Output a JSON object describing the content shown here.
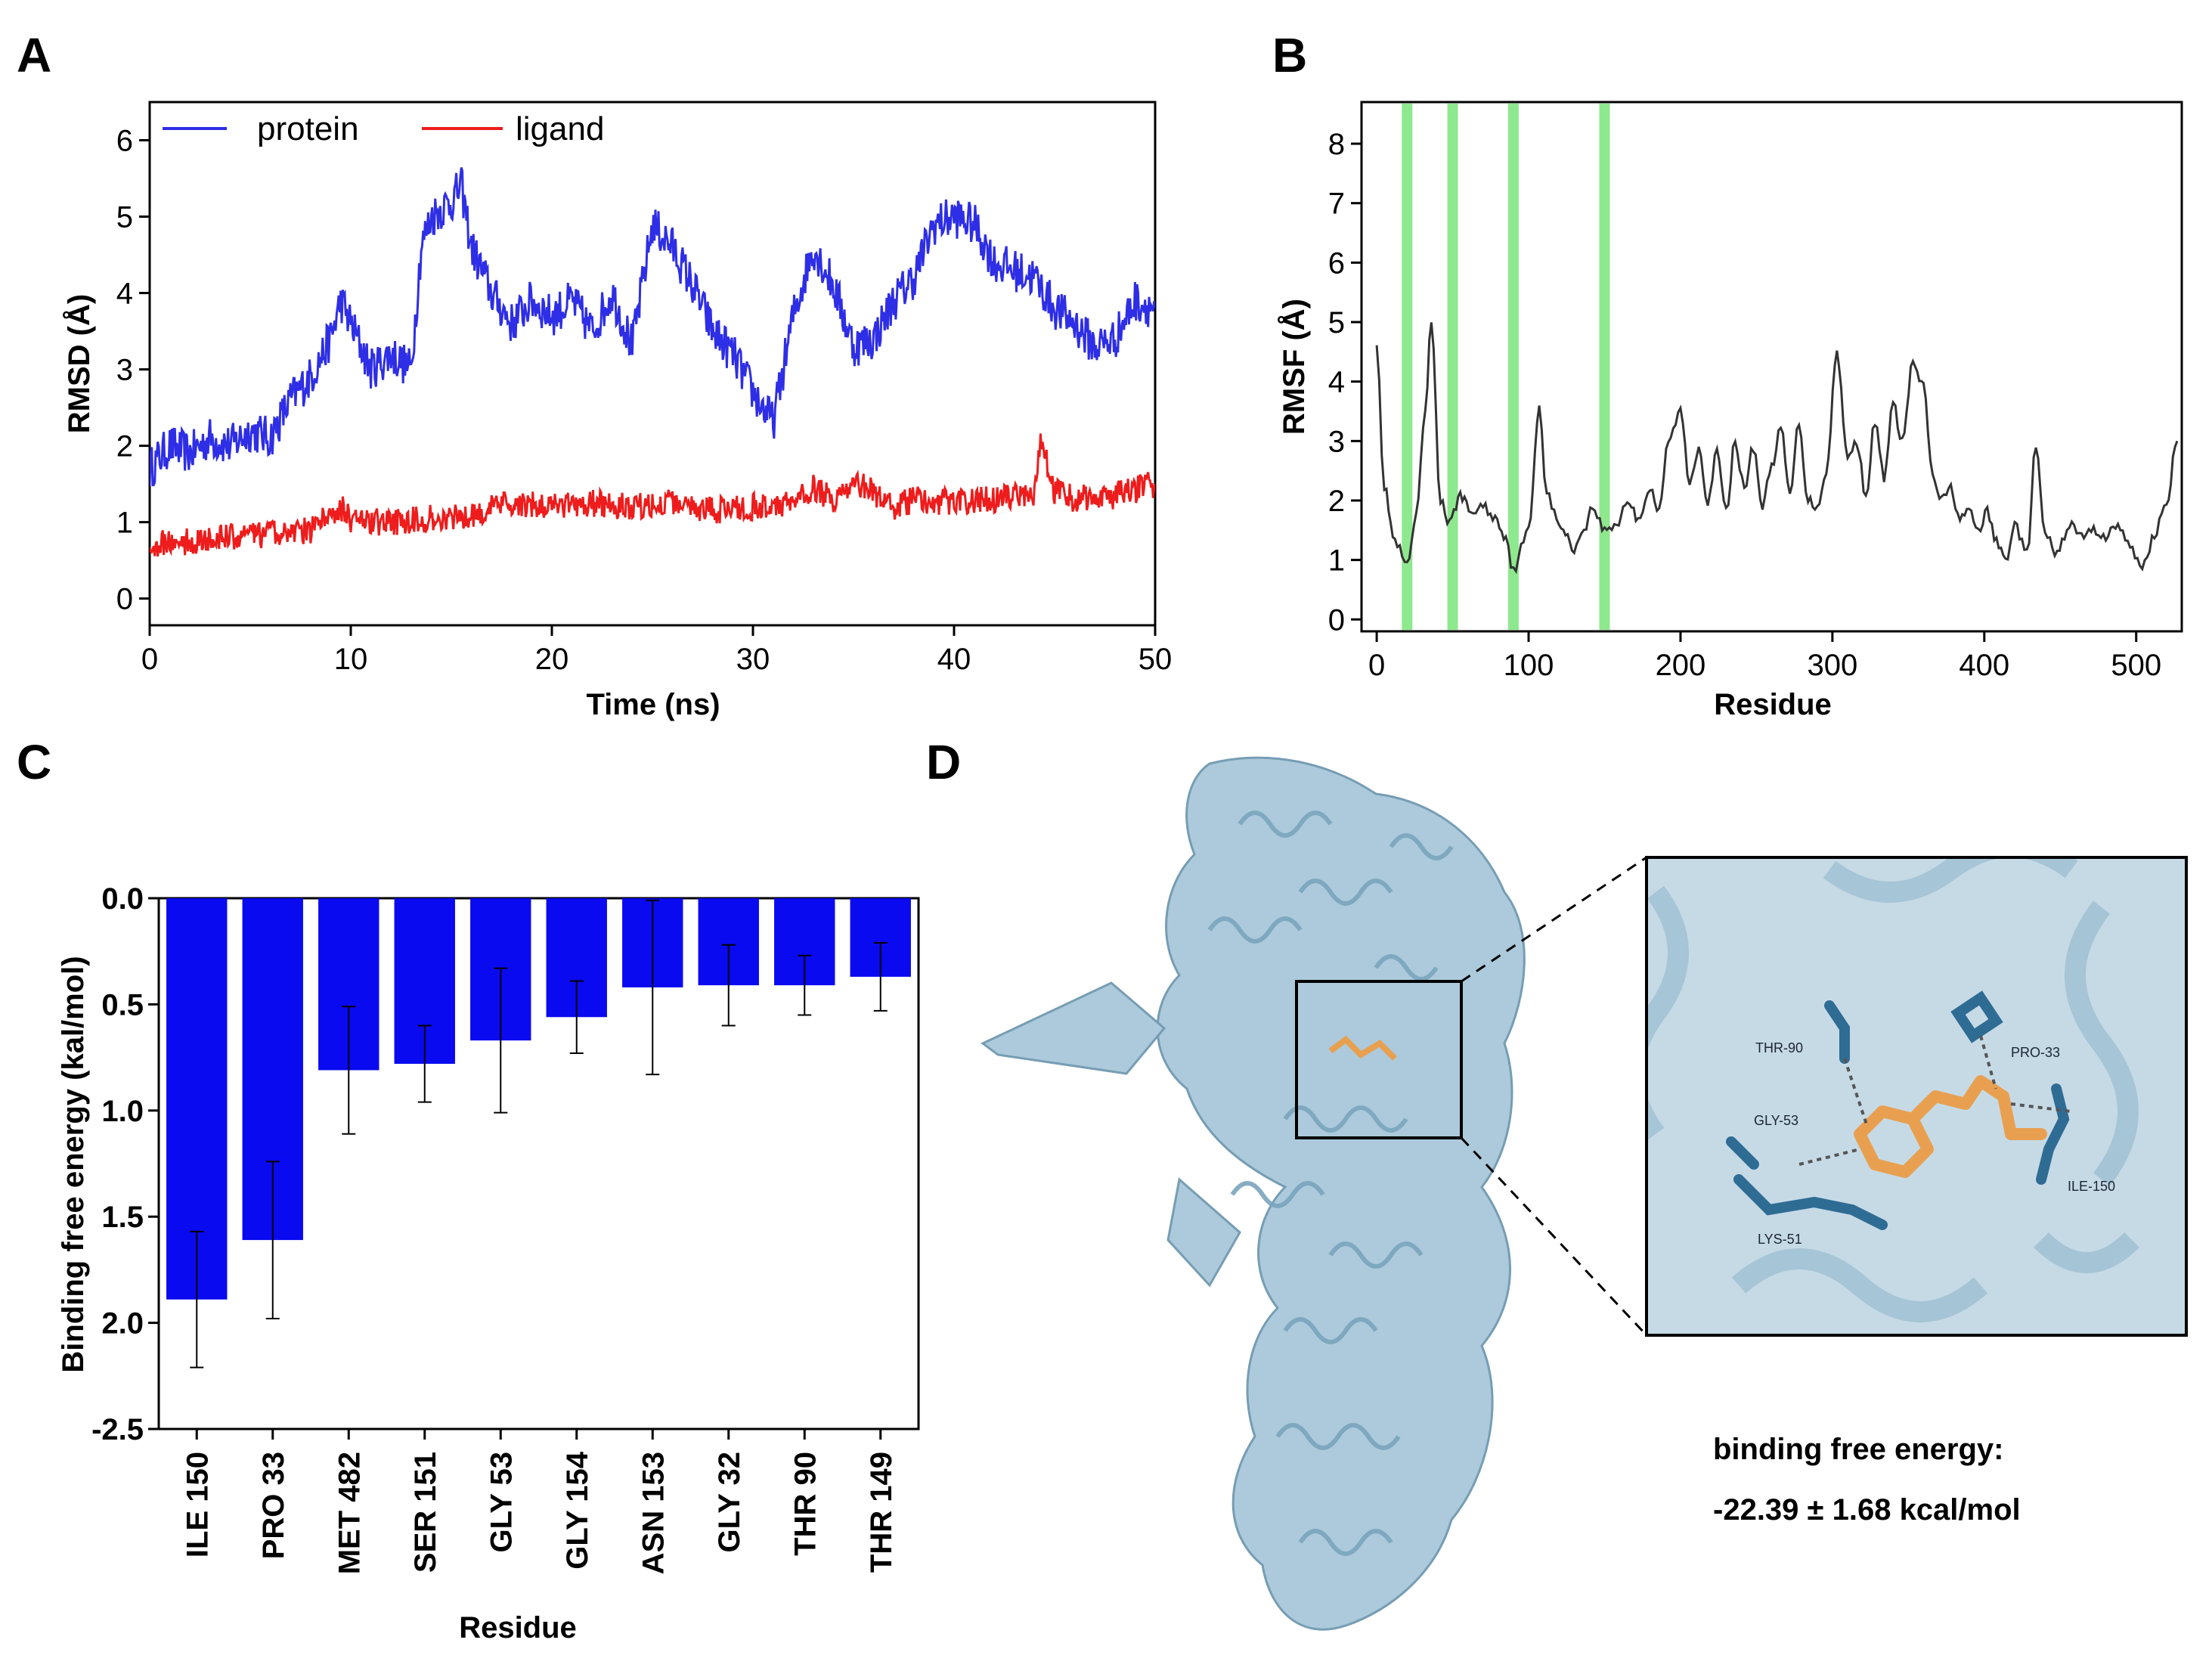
{
  "panels": {
    "A": {
      "letter": "A"
    },
    "B": {
      "letter": "B"
    },
    "C": {
      "letter": "C"
    },
    "D": {
      "letter": "D"
    }
  },
  "chart_data": [
    {
      "id": "A",
      "type": "line",
      "xlabel": "Time (ns)",
      "ylabel": "RMSD (Å)",
      "xlim": [
        0,
        50
      ],
      "ylim": [
        -0.35,
        6.5
      ],
      "xticks": [
        "0",
        "10",
        "20",
        "30",
        "40",
        "50"
      ],
      "yticks": [
        "0",
        "1",
        "2",
        "3",
        "4",
        "5",
        "6"
      ],
      "legend_position": "top-left",
      "series": [
        {
          "name": "protein",
          "color": "#2e2ee6",
          "x": [
            0,
            1,
            2,
            3,
            4,
            5,
            6,
            7,
            8,
            9,
            9.5,
            10.5,
            11,
            12,
            13,
            13.5,
            14,
            15,
            15.5,
            16,
            17,
            18,
            19,
            20,
            21,
            22,
            23,
            24,
            25,
            26,
            27,
            28,
            29,
            30,
            31,
            32,
            33,
            34,
            35,
            36,
            37,
            38,
            39,
            40,
            41,
            42,
            43,
            44,
            45,
            46,
            47,
            48,
            49,
            50
          ],
          "y": [
            1.7,
            2.0,
            1.9,
            2.1,
            2.0,
            2.2,
            2.1,
            2.6,
            2.9,
            3.4,
            3.9,
            3.3,
            3.0,
            3.2,
            3.0,
            4.6,
            5.0,
            5.2,
            5.4,
            4.6,
            4.0,
            3.6,
            3.9,
            3.7,
            3.9,
            3.5,
            4.0,
            3.3,
            4.9,
            4.6,
            4.1,
            3.5,
            3.2,
            2.7,
            2.3,
            3.7,
            4.6,
            4.1,
            3.3,
            3.4,
            3.9,
            4.2,
            4.9,
            5.0,
            4.9,
            4.4,
            4.3,
            4.2,
            3.8,
            3.6,
            3.3,
            3.4,
            3.9,
            3.8
          ]
        },
        {
          "name": "ligand",
          "color": "#ee1c1c",
          "x": [
            0,
            2,
            4,
            6,
            8,
            9.5,
            10,
            12,
            14,
            16,
            18,
            20,
            22,
            24,
            26,
            28,
            30,
            32,
            33,
            34,
            35.5,
            37,
            38,
            40,
            42,
            44,
            44.3,
            45,
            46,
            48,
            50
          ],
          "y": [
            0.7,
            0.75,
            0.8,
            0.85,
            0.9,
            1.2,
            1.0,
            1.0,
            1.05,
            1.1,
            1.25,
            1.2,
            1.25,
            1.2,
            1.25,
            1.15,
            1.2,
            1.25,
            1.45,
            1.3,
            1.5,
            1.2,
            1.3,
            1.25,
            1.3,
            1.35,
            2.1,
            1.4,
            1.3,
            1.35,
            1.5
          ]
        }
      ]
    },
    {
      "id": "B",
      "type": "line",
      "xlabel": "Residue",
      "ylabel": "RMSF (Å)",
      "xlim": [
        -10,
        530
      ],
      "ylim": [
        -0.2,
        8.7
      ],
      "xticks": [
        "0",
        "100",
        "200",
        "300",
        "400",
        "500"
      ],
      "yticks": [
        "0",
        "1",
        "2",
        "3",
        "4",
        "5",
        "6",
        "7",
        "8"
      ],
      "highlight_residues": [
        20,
        50,
        90,
        150
      ],
      "highlight_color": "#8ee88e",
      "series": [
        {
          "name": "RMSF",
          "color": "#333333",
          "x": [
            0,
            5,
            12,
            20,
            26,
            32,
            36,
            42,
            48,
            55,
            62,
            70,
            78,
            85,
            90,
            95,
            100,
            107,
            112,
            120,
            130,
            138,
            142,
            150,
            158,
            165,
            172,
            180,
            186,
            192,
            200,
            206,
            212,
            218,
            224,
            230,
            236,
            242,
            248,
            254,
            260,
            266,
            272,
            278,
            284,
            290,
            296,
            303,
            310,
            316,
            322,
            328,
            334,
            340,
            346,
            353,
            360,
            366,
            372,
            378,
            384,
            390,
            396,
            402,
            408,
            414,
            420,
            428,
            434,
            440,
            448,
            456,
            464,
            472,
            480,
            488,
            496,
            504,
            512,
            520,
            527
          ],
          "y": [
            4.7,
            2.2,
            1.3,
            0.9,
            1.7,
            3.5,
            5.0,
            2.0,
            1.6,
            2.1,
            1.8,
            1.9,
            1.7,
            1.4,
            0.8,
            1.2,
            1.5,
            3.6,
            2.1,
            1.6,
            1.2,
            1.6,
            1.9,
            1.5,
            1.6,
            2.0,
            1.7,
            2.2,
            1.8,
            3.0,
            3.5,
            2.3,
            2.9,
            2.0,
            2.8,
            1.8,
            3.0,
            2.2,
            2.9,
            1.9,
            2.6,
            3.2,
            2.1,
            3.3,
            2.0,
            1.9,
            2.5,
            4.5,
            2.7,
            3.0,
            2.1,
            3.3,
            2.4,
            3.6,
            3.0,
            4.3,
            3.9,
            2.4,
            2.0,
            2.2,
            1.7,
            1.8,
            1.5,
            1.8,
            1.3,
            1.0,
            1.6,
            1.1,
            2.9,
            1.4,
            1.1,
            1.6,
            1.4,
            1.5,
            1.4,
            1.6,
            1.2,
            0.9,
            1.4,
            2.0,
            3.0
          ]
        }
      ]
    },
    {
      "id": "C",
      "type": "bar",
      "xlabel": "Residue",
      "ylabel": "Binding free energy (kal/mol)",
      "ylim": [
        0,
        2.5
      ],
      "yticks": [
        "0.0",
        "0.5",
        "1.0",
        "1.5",
        "2.0",
        "-2.5"
      ],
      "categories": [
        "ILE 150",
        "PRO 33",
        "MET 482",
        "SER 151",
        "GLY 53",
        "GLY 154",
        "ASN 153",
        "GLY 32",
        "THR 90",
        "THR 149"
      ],
      "values": [
        1.89,
        1.61,
        0.81,
        0.78,
        0.67,
        0.56,
        0.42,
        0.41,
        0.41,
        0.37
      ],
      "errors": [
        0.32,
        0.37,
        0.3,
        0.18,
        0.34,
        0.17,
        0.41,
        0.19,
        0.14,
        0.16
      ],
      "color": "#0a0af0"
    }
  ],
  "structure": {
    "residue_labels": [
      "THR-90",
      "PRO-33",
      "GLY-53",
      "ILE-150",
      "LYS-51"
    ],
    "binding_energy_label": "binding free energy:",
    "binding_energy_value": "-22.39 ± 1.68 kcal/mol",
    "protein_color": "#9cc0d4",
    "ligand_color": "#e8a050",
    "residue_color": "#2f6c94"
  }
}
